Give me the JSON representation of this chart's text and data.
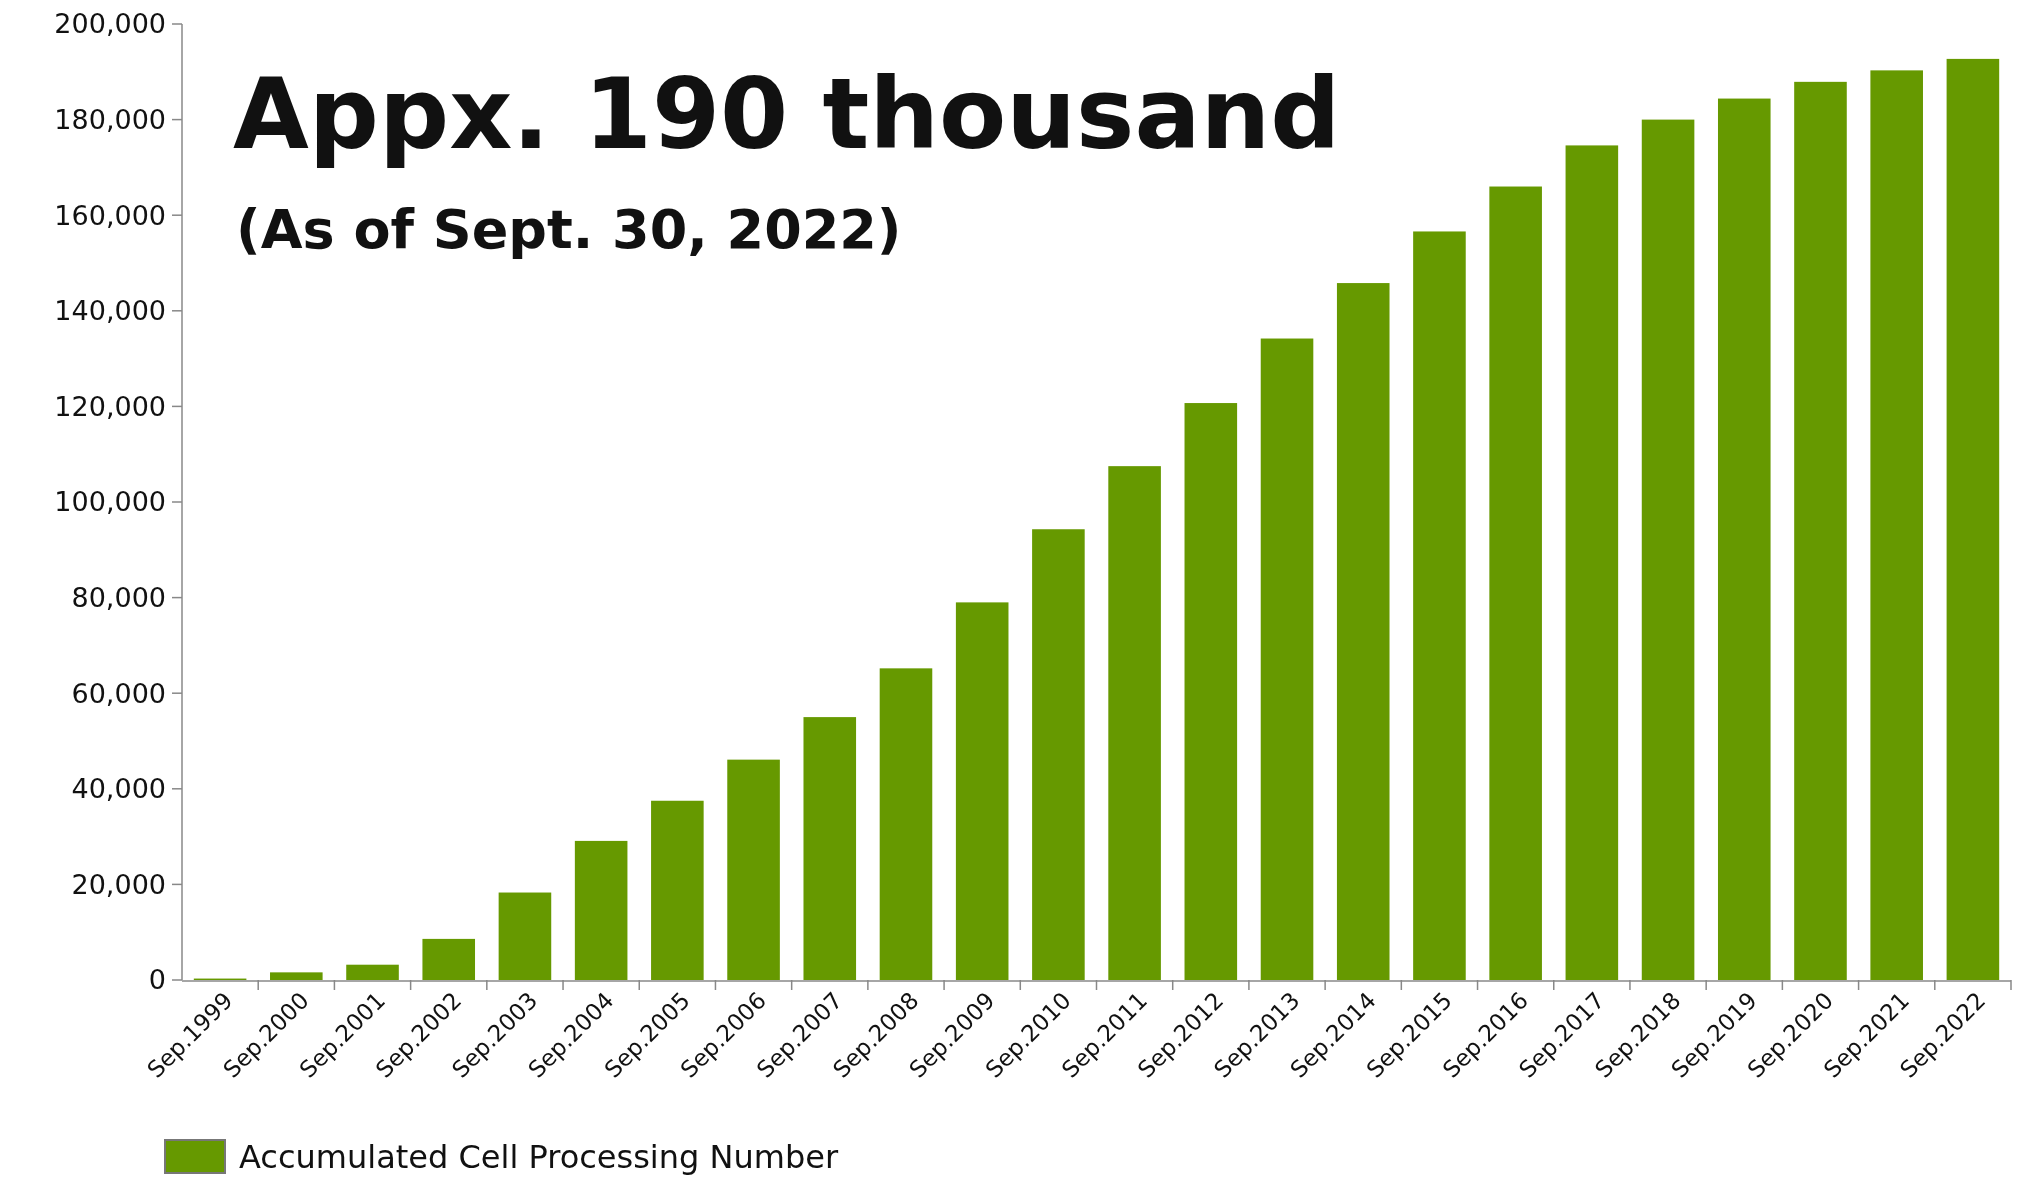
{
  "chart_data": {
    "type": "bar",
    "title": "Appx. 190 thousand",
    "subtitle": "(As of Sept. 30, 2022)",
    "categories": [
      "Sep.1999",
      "Sep.2000",
      "Sep.2001",
      "Sep.2002",
      "Sep.2003",
      "Sep.2004",
      "Sep.2005",
      "Sep.2006",
      "Sep.2007",
      "Sep.2008",
      "Sep.2009",
      "Sep.2010",
      "Sep.2011",
      "Sep.2012",
      "Sep.2013",
      "Sep.2014",
      "Sep.2015",
      "Sep.2016",
      "Sep.2017",
      "Sep.2018",
      "Sep.2019",
      "Sep.2020",
      "Sep.2021",
      "Sep.2022"
    ],
    "series": [
      {
        "name": "Accumulated Cell Processing Number",
        "color": "#669900",
        "values": [
          300,
          1600,
          3200,
          8600,
          18300,
          29100,
          37500,
          46100,
          55000,
          65200,
          79000,
          94300,
          107500,
          120700,
          134200,
          145800,
          156600,
          166000,
          174600,
          180000,
          184400,
          187900,
          190300,
          192700
        ]
      }
    ],
    "ylim": [
      0,
      200000
    ],
    "yticks": [
      {
        "value": 0,
        "label": "0"
      },
      {
        "value": 20000,
        "label": "20,000"
      },
      {
        "value": 40000,
        "label": "40,000"
      },
      {
        "value": 60000,
        "label": "60,000"
      },
      {
        "value": 80000,
        "label": "80,000"
      },
      {
        "value": 100000,
        "label": "100,000"
      },
      {
        "value": 120000,
        "label": "120,000"
      },
      {
        "value": 140000,
        "label": "140,000"
      },
      {
        "value": 160000,
        "label": "160,000"
      },
      {
        "value": 180000,
        "label": "180,000"
      },
      {
        "value": 200000,
        "label": "200,000"
      }
    ],
    "grid": false,
    "legend": "bottom left"
  }
}
